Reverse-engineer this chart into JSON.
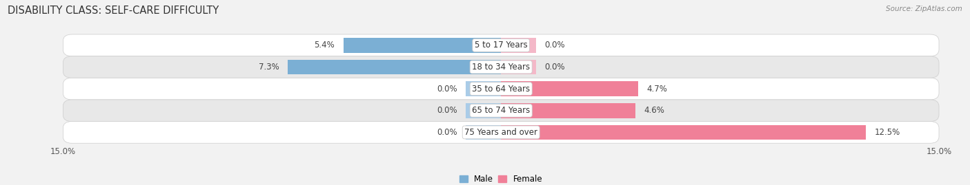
{
  "title": "DISABILITY CLASS: SELF-CARE DIFFICULTY",
  "source": "Source: ZipAtlas.com",
  "categories": [
    "5 to 17 Years",
    "18 to 34 Years",
    "35 to 64 Years",
    "65 to 74 Years",
    "75 Years and over"
  ],
  "male_values": [
    5.4,
    7.3,
    0.0,
    0.0,
    0.0
  ],
  "female_values": [
    0.0,
    0.0,
    4.7,
    4.6,
    12.5
  ],
  "male_color": "#7bafd4",
  "female_color": "#f08098",
  "male_stub_color": "#aacce8",
  "female_stub_color": "#f4b8c8",
  "male_label": "Male",
  "female_label": "Female",
  "xlim": 15.0,
  "background_color": "#f2f2f2",
  "row_bg_color": "#ffffff",
  "row_stripe_color": "#e8e8e8",
  "title_fontsize": 10.5,
  "label_fontsize": 8.5,
  "tick_fontsize": 8.5,
  "bar_height": 0.68,
  "stub_value": 1.2
}
